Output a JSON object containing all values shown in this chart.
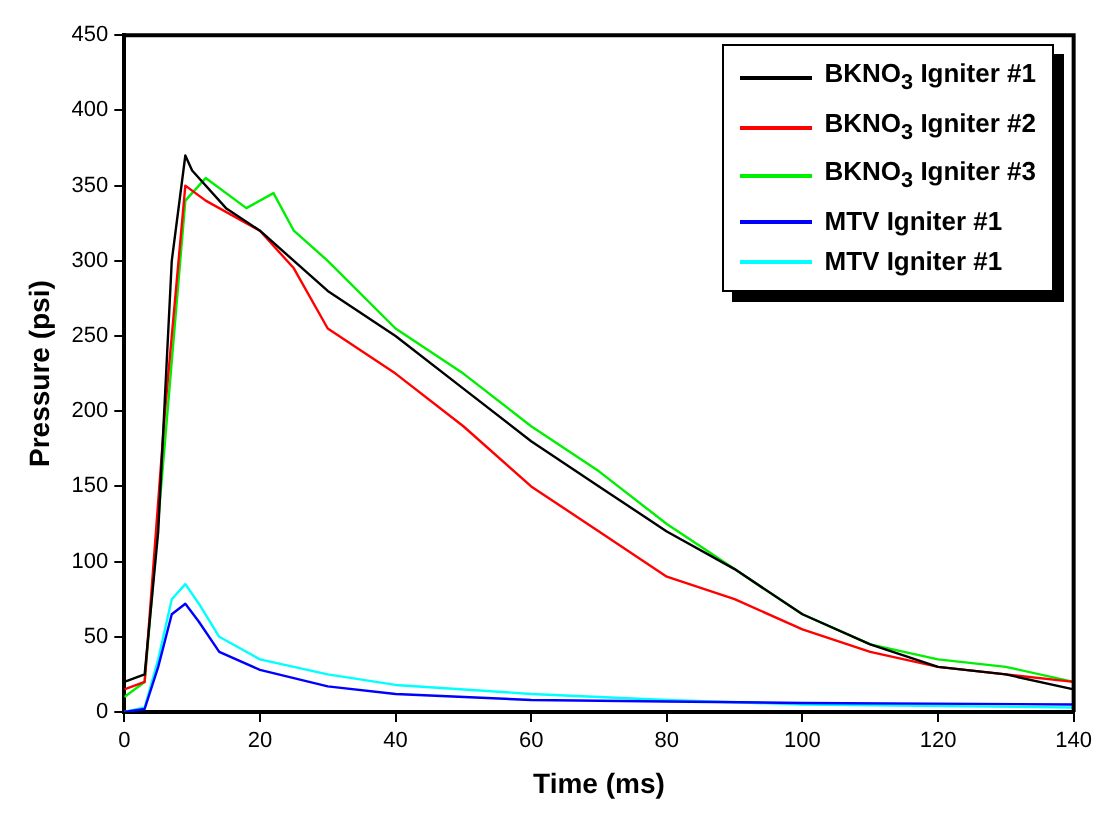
{
  "chart_data": {
    "type": "line",
    "xlabel": "Time (ms)",
    "ylabel": "Pressure (psi)",
    "xlim": [
      0,
      140
    ],
    "xticks": [
      0,
      20,
      40,
      60,
      80,
      100,
      120,
      140
    ],
    "ylim": [
      0,
      450
    ],
    "yticks": [
      0,
      50,
      100,
      150,
      200,
      250,
      300,
      350,
      400,
      450
    ],
    "grid": false,
    "legend": "top right",
    "marker": "none",
    "line_style": "solid",
    "series": [
      {
        "name": "BKNO$_{3}$ Igniter #1",
        "color": "#000000",
        "x": [
          0,
          3,
          5,
          7,
          9,
          10,
          15,
          20,
          30,
          40,
          50,
          60,
          70,
          80,
          90,
          100,
          110,
          120,
          130,
          140
        ],
        "values": [
          20,
          25,
          120,
          300,
          370,
          360,
          335,
          320,
          280,
          250,
          215,
          180,
          150,
          120,
          95,
          65,
          45,
          30,
          25,
          15
        ]
      },
      {
        "name": "BKNO$_{3}$ Igniter #2",
        "color": "#ff0000",
        "x": [
          0,
          3,
          6,
          9,
          12,
          20,
          25,
          30,
          40,
          50,
          60,
          70,
          80,
          90,
          100,
          110,
          120,
          130,
          140
        ],
        "values": [
          15,
          20,
          200,
          350,
          340,
          320,
          295,
          255,
          225,
          190,
          150,
          120,
          90,
          75,
          55,
          40,
          30,
          25,
          20
        ]
      },
      {
        "name": "BKNO$_{3}$ Igniter #3",
        "color": "#00ee00",
        "x": [
          0,
          3,
          6,
          9,
          12,
          18,
          22,
          25,
          30,
          40,
          50,
          60,
          70,
          80,
          90,
          100,
          110,
          120,
          130,
          140
        ],
        "values": [
          10,
          20,
          180,
          340,
          355,
          335,
          345,
          320,
          300,
          255,
          225,
          190,
          160,
          125,
          95,
          65,
          45,
          35,
          30,
          20
        ]
      },
      {
        "name": "MTV Igniter #1",
        "color": "#0000ff",
        "x": [
          0,
          3,
          5,
          7,
          9,
          11,
          14,
          20,
          30,
          40,
          60,
          80,
          100,
          140
        ],
        "values": [
          0,
          2,
          30,
          65,
          72,
          60,
          40,
          28,
          17,
          12,
          8,
          7,
          6,
          5
        ]
      },
      {
        "name": "MTV Igniter #1",
        "color": "#00ffff",
        "x": [
          0,
          3,
          5,
          7,
          9,
          11,
          14,
          20,
          30,
          40,
          60,
          80,
          100,
          140
        ],
        "values": [
          0,
          3,
          35,
          75,
          85,
          72,
          50,
          35,
          25,
          18,
          12,
          8,
          5,
          3
        ]
      }
    ]
  }
}
